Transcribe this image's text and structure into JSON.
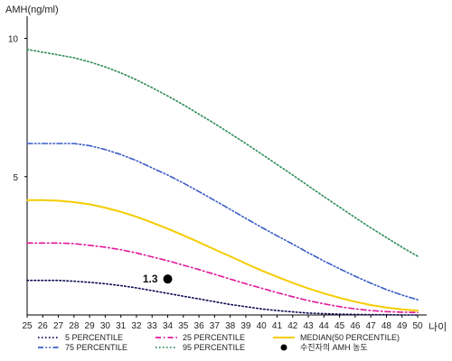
{
  "chart_data": {
    "type": "line",
    "ylabel": "AMH(ng/ml)",
    "xlabel": "나이",
    "xlim": [
      25,
      50
    ],
    "ylim": [
      0,
      10.8
    ],
    "x_ticks": [
      25,
      26,
      27,
      28,
      29,
      30,
      31,
      32,
      33,
      34,
      35,
      36,
      37,
      38,
      39,
      40,
      41,
      42,
      43,
      44,
      45,
      46,
      47,
      48,
      49,
      50
    ],
    "y_ticks": [
      5,
      10
    ],
    "grid": false,
    "legend_position": "bottom",
    "x": [
      25,
      26,
      27,
      28,
      29,
      30,
      31,
      32,
      33,
      34,
      35,
      36,
      37,
      38,
      39,
      40,
      41,
      42,
      43,
      44,
      45,
      46,
      47,
      48,
      49,
      50
    ],
    "series": [
      {
        "name": "5 PERCENTILE",
        "color": "#0a0a50",
        "dash": "dotted",
        "values": [
          1.25,
          1.25,
          1.25,
          1.22,
          1.18,
          1.13,
          1.06,
          0.98,
          0.88,
          0.78,
          0.68,
          0.58,
          0.48,
          0.38,
          0.3,
          0.22,
          0.16,
          0.11,
          0.07,
          0.05,
          0.03,
          0.02,
          0.01,
          0.01,
          0.0,
          0.0
        ]
      },
      {
        "name": "25 PERCENTILE",
        "color": "#e0179a",
        "dash": "dashdot",
        "values": [
          2.6,
          2.6,
          2.6,
          2.58,
          2.52,
          2.45,
          2.36,
          2.24,
          2.1,
          1.96,
          1.8,
          1.64,
          1.47,
          1.3,
          1.13,
          0.97,
          0.81,
          0.66,
          0.52,
          0.4,
          0.3,
          0.22,
          0.16,
          0.12,
          0.1,
          0.09
        ]
      },
      {
        "name": "MEDIAN(50 PERCENTILE)",
        "color": "#f5cc00",
        "dash": "solid",
        "values": [
          4.15,
          4.15,
          4.13,
          4.08,
          4.0,
          3.88,
          3.73,
          3.55,
          3.34,
          3.12,
          2.88,
          2.63,
          2.37,
          2.12,
          1.86,
          1.61,
          1.38,
          1.16,
          0.96,
          0.78,
          0.62,
          0.48,
          0.36,
          0.27,
          0.2,
          0.16
        ]
      },
      {
        "name": "75 PERCENTILE",
        "color": "#3a5cc8",
        "dash": "dashdotdot",
        "values": [
          6.2,
          6.2,
          6.2,
          6.2,
          6.12,
          5.98,
          5.8,
          5.58,
          5.32,
          5.06,
          4.77,
          4.46,
          4.14,
          3.82,
          3.49,
          3.17,
          2.86,
          2.56,
          2.25,
          1.95,
          1.67,
          1.4,
          1.15,
          0.92,
          0.72,
          0.55
        ]
      },
      {
        "name": "95 PERCENTILE",
        "color": "#2e8a58",
        "dash": "dotted",
        "values": [
          9.6,
          9.5,
          9.4,
          9.3,
          9.15,
          8.97,
          8.75,
          8.5,
          8.22,
          7.92,
          7.6,
          7.26,
          6.92,
          6.56,
          6.2,
          5.82,
          5.44,
          5.06,
          4.67,
          4.28,
          3.9,
          3.52,
          3.15,
          2.8,
          2.45,
          2.12
        ]
      }
    ],
    "highlight_point": {
      "name": "수진자의 AMH 농도",
      "x": 34,
      "y": 1.3,
      "label": "1.3",
      "color": "#000000"
    },
    "legend_layout": [
      "5 PERCENTILE",
      "25 PERCENTILE",
      "MEDIAN(50 PERCENTILE)",
      "75 PERCENTILE",
      "95 PERCENTILE",
      "수진자의 AMH 농도"
    ]
  }
}
